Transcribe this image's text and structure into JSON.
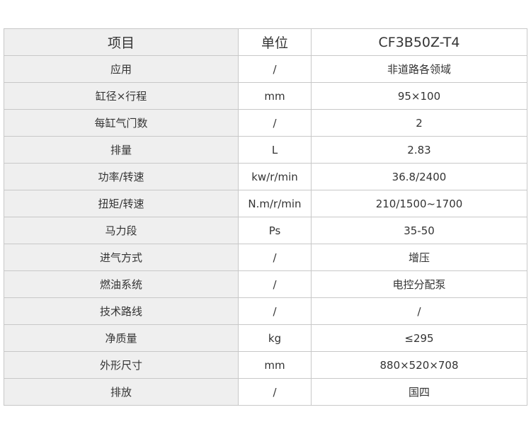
{
  "header": [
    "项目",
    "单位",
    "CF3B50Z-T4"
  ],
  "rows": [
    [
      "应用",
      "/",
      "非道路各领域"
    ],
    [
      "缸径×行程",
      "mm",
      "95×100"
    ],
    [
      "每缸气门数",
      "/",
      "2"
    ],
    [
      "排量",
      "L",
      "2.83"
    ],
    [
      "功率/转速",
      "kw/r/min",
      "36.8/2400"
    ],
    [
      "扭矩/转速",
      "N.m/r/min",
      "210/1500~1700"
    ],
    [
      "马力段",
      "Ps",
      "35-50"
    ],
    [
      "进气方式",
      "/",
      "增压"
    ],
    [
      "燃油系统",
      "/",
      "电控分配泵"
    ],
    [
      "技术路线",
      "/",
      "/"
    ],
    [
      "净质量",
      "kg",
      "≤295"
    ],
    [
      "外形尺寸",
      "mm",
      "880×520×708"
    ],
    [
      "排放",
      "/",
      "国四"
    ]
  ]
}
